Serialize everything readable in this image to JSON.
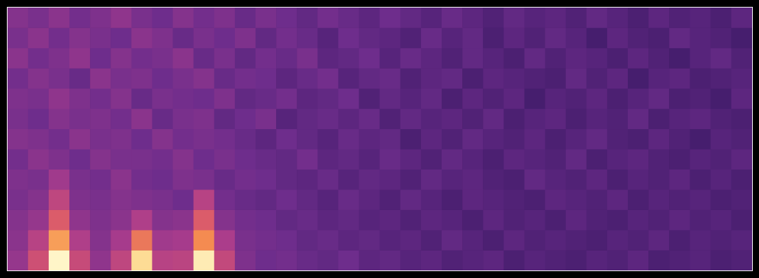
{
  "chart_data": {
    "type": "heatmap",
    "tick_labels": false,
    "grid": false,
    "cells": [
      [
        52,
        50,
        53,
        49,
        51,
        54,
        50,
        48,
        52,
        49,
        51,
        47,
        50,
        48,
        46,
        49,
        47,
        45,
        48,
        46,
        44,
        47,
        45,
        43,
        46,
        44,
        45,
        43,
        46,
        44,
        42,
        45,
        43,
        44,
        42,
        45
      ],
      [
        50,
        53,
        49,
        52,
        50,
        48,
        53,
        51,
        47,
        50,
        48,
        51,
        46,
        49,
        47,
        44,
        48,
        46,
        45,
        43,
        47,
        44,
        46,
        42,
        45,
        43,
        46,
        44,
        41,
        45,
        43,
        42,
        46,
        44,
        43,
        41
      ],
      [
        53,
        49,
        51,
        54,
        48,
        52,
        49,
        50,
        53,
        47,
        50,
        46,
        49,
        47,
        50,
        45,
        46,
        48,
        44,
        47,
        45,
        43,
        46,
        44,
        42,
        46,
        43,
        45,
        44,
        42,
        45,
        43,
        41,
        44,
        46,
        43
      ],
      [
        49,
        52,
        50,
        47,
        53,
        50,
        51,
        48,
        50,
        52,
        47,
        49,
        48,
        45,
        47,
        49,
        44,
        46,
        47,
        43,
        45,
        46,
        42,
        45,
        44,
        43,
        42,
        46,
        43,
        45,
        41,
        44,
        45,
        42,
        43,
        44
      ],
      [
        51,
        50,
        54,
        51,
        49,
        52,
        47,
        50,
        49,
        48,
        51,
        46,
        47,
        49,
        45,
        46,
        48,
        43,
        46,
        44,
        46,
        42,
        45,
        43,
        45,
        41,
        44,
        43,
        45,
        42,
        44,
        46,
        42,
        43,
        41,
        45
      ],
      [
        50,
        48,
        52,
        50,
        51,
        49,
        53,
        47,
        50,
        51,
        46,
        48,
        50,
        44,
        46,
        47,
        45,
        47,
        43,
        46,
        44,
        45,
        43,
        46,
        42,
        44,
        45,
        42,
        44,
        43,
        46,
        42,
        44,
        45,
        43,
        42
      ],
      [
        52,
        51,
        49,
        53,
        50,
        51,
        48,
        52,
        49,
        50,
        49,
        47,
        45,
        48,
        46,
        44,
        47,
        45,
        46,
        42,
        45,
        43,
        46,
        44,
        43,
        45,
        42,
        44,
        46,
        43,
        42,
        45,
        43,
        41,
        44,
        43
      ],
      [
        49,
        53,
        51,
        48,
        52,
        50,
        50,
        49,
        52,
        48,
        50,
        48,
        47,
        46,
        49,
        45,
        46,
        44,
        47,
        45,
        43,
        46,
        44,
        42,
        45,
        44,
        43,
        46,
        42,
        44,
        45,
        43,
        42,
        44,
        43,
        45
      ],
      [
        51,
        50,
        57,
        50,
        49,
        53,
        49,
        48,
        51,
        50,
        47,
        49,
        48,
        46,
        45,
        47,
        44,
        46,
        45,
        43,
        46,
        44,
        45,
        43,
        42,
        46,
        44,
        43,
        45,
        42,
        44,
        43,
        45,
        42,
        44,
        42
      ],
      [
        50,
        52,
        64,
        51,
        50,
        52,
        51,
        50,
        48,
        62,
        49,
        47,
        46,
        48,
        46,
        44,
        47,
        45,
        43,
        46,
        44,
        42,
        45,
        44,
        43,
        42,
        45,
        44,
        43,
        45,
        42,
        44,
        43,
        44,
        42,
        43
      ],
      [
        52,
        55,
        72,
        54,
        51,
        53,
        60,
        52,
        53,
        72,
        52,
        49,
        48,
        46,
        47,
        45,
        46,
        44,
        45,
        43,
        45,
        44,
        42,
        45,
        43,
        44,
        42,
        45,
        43,
        42,
        44,
        43,
        45,
        43,
        44,
        42
      ],
      [
        53,
        62,
        85,
        60,
        52,
        58,
        78,
        57,
        58,
        82,
        59,
        50,
        49,
        48,
        46,
        47,
        45,
        46,
        44,
        45,
        43,
        46,
        44,
        42,
        45,
        43,
        44,
        43,
        42,
        44,
        43,
        45,
        42,
        44,
        43,
        44
      ],
      [
        55,
        68,
        100,
        66,
        54,
        64,
        95,
        62,
        63,
        98,
        65,
        51,
        48,
        49,
        47,
        46,
        48,
        45,
        46,
        44,
        45,
        43,
        44,
        45,
        42,
        44,
        43,
        42,
        44,
        43,
        45,
        42,
        43,
        44,
        42,
        43
      ]
    ]
  }
}
